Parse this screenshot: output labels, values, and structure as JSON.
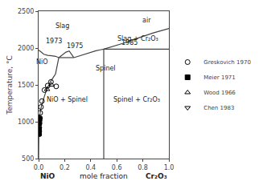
{
  "chart_data": {
    "type": "line",
    "ylabel": "Temperature, °C",
    "xlabel": [
      "NiO",
      "mole fraction",
      "Cr₂O₃"
    ],
    "xlim": [
      0.0,
      1.0
    ],
    "ylim": [
      500,
      2500
    ],
    "xticks": [
      {
        "value": 0.0,
        "label": "0.0"
      },
      0.2,
      0.4,
      0.6,
      0.8,
      {
        "value": 1.0,
        "label": "1.0"
      }
    ],
    "yticks": [
      500,
      1000,
      1500,
      2000,
      2500
    ],
    "grid": false,
    "legend": "right",
    "series": [
      {
        "type": "line",
        "color": "#444444",
        "x": [
          0.0,
          0.0,
          0.003,
          0.006,
          0.01,
          0.02,
          0.04,
          0.06,
          0.09,
          0.13,
          0.155
        ],
        "values": [
          500,
          990,
          1020,
          1060,
          1100,
          1200,
          1320,
          1430,
          1540,
          1650,
          1870
        ]
      },
      {
        "type": "line",
        "color": "#444444",
        "x": [
          0.0,
          0.005,
          0.01,
          0.02,
          0.04,
          0.07,
          0.1,
          0.13,
          0.155
        ],
        "values": [
          1973,
          1968,
          1960,
          1945,
          1915,
          1900,
          1895,
          1888,
          1870
        ]
      },
      {
        "type": "line",
        "color": "#444444",
        "x": [
          0.155,
          0.27
        ],
        "values": [
          1870,
          1870
        ]
      },
      {
        "type": "line",
        "color": "#444444",
        "x": [
          0.155,
          0.19,
          0.21,
          0.235,
          0.27
        ],
        "values": [
          1870,
          1920,
          1945,
          1960,
          1870
        ]
      },
      {
        "type": "line",
        "color": "#444444",
        "x": [
          0.27,
          0.33,
          0.39,
          0.44,
          0.48,
          0.5
        ],
        "values": [
          1870,
          1905,
          1940,
          1963,
          1978,
          1985
        ]
      },
      {
        "type": "line",
        "color": "#444444",
        "x": [
          0.5,
          1.0
        ],
        "values": [
          1985,
          1985
        ]
      },
      {
        "type": "line",
        "color": "#444444",
        "x": [
          0.5,
          0.5
        ],
        "values": [
          500,
          1985
        ]
      },
      {
        "type": "line",
        "color": "#444444",
        "x": [
          0.5,
          0.57,
          0.65,
          0.72,
          0.8,
          0.88,
          0.95,
          1.0
        ],
        "values": [
          1985,
          2020,
          2065,
          2110,
          2160,
          2205,
          2240,
          2265
        ]
      },
      {
        "name": "Greskovich 1970",
        "type": "scatter",
        "marker": "circle-open",
        "color": "#000000",
        "x": [
          0.004,
          0.004,
          0.005,
          0.006,
          0.008,
          0.012,
          0.018,
          0.025,
          0.045,
          0.07,
          0.095,
          0.135
        ],
        "values": [
          830,
          870,
          920,
          990,
          1050,
          1120,
          1200,
          1280,
          1430,
          1490,
          1540,
          1480
        ]
      },
      {
        "name": "Meier 1971",
        "type": "scatter",
        "marker": "square",
        "color": "#000000",
        "x": [
          0.002,
          0.003,
          0.004,
          0.007
        ],
        "values": [
          840,
          900,
          980,
          1040
        ]
      },
      {
        "name": "Wood 1966",
        "type": "scatter",
        "marker": "triangle-up-open",
        "color": "#000000",
        "x": [
          0.065,
          0.1
        ],
        "values": [
          1440,
          1500
        ]
      },
      {
        "name": "Chen 1983",
        "type": "scatter",
        "marker": "triangle-down-open",
        "color": "#000000",
        "x": [
          0.004,
          0.005,
          0.009
        ],
        "values": [
          855,
          960,
          1030
        ]
      }
    ],
    "annotations": [
      {
        "text": "Slag",
        "x": 0.18,
        "y": 2300
      },
      {
        "text": "air",
        "x": 0.83,
        "y": 2380
      },
      {
        "text": "NiO",
        "x": 0.028,
        "y": 1810
      },
      {
        "text": "NiO + Spinel",
        "x": 0.22,
        "y": 1300
      },
      {
        "text": "Spinel",
        "x": 0.515,
        "y": 1720
      },
      {
        "text": "Slag + Cr₂O₃",
        "x": 0.76,
        "y": 2120
      },
      {
        "text": "Spinel + Cr₂O₃",
        "x": 0.75,
        "y": 1300
      },
      {
        "text": "1973",
        "x": 0.045,
        "y": 2020
      },
      {
        "text": "1975",
        "x": 0.205,
        "y": 1960
      },
      {
        "text": "1985",
        "x": 0.625,
        "y": 2000
      }
    ]
  }
}
